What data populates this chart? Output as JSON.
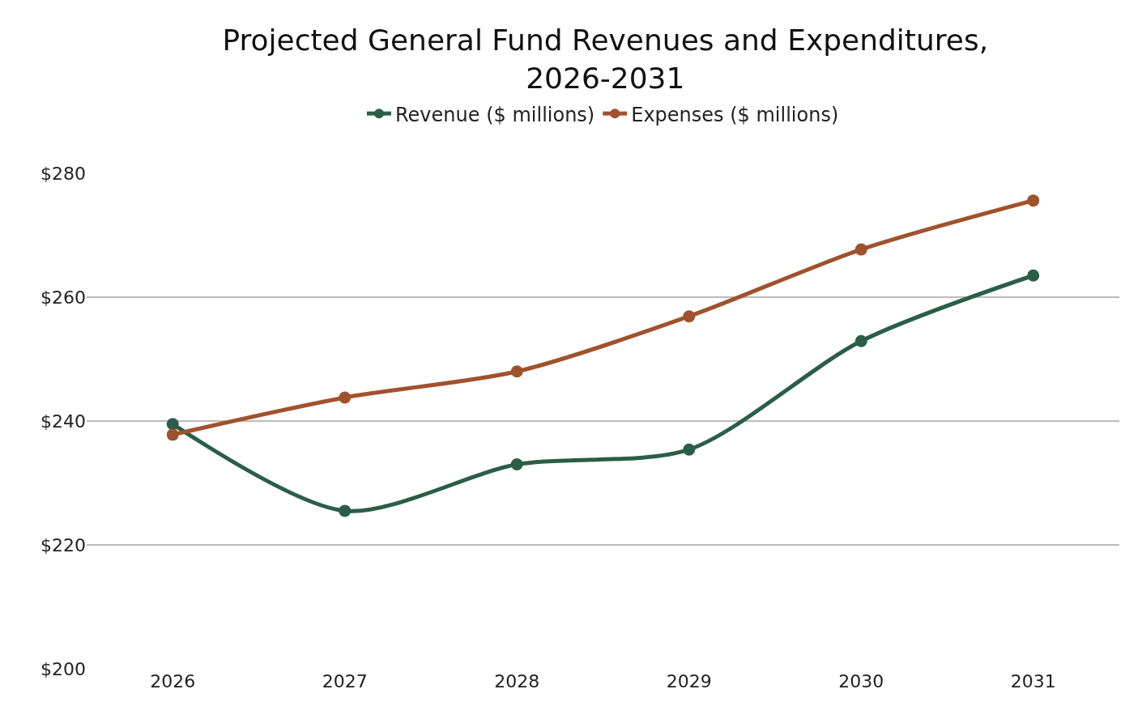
{
  "chart_data": {
    "type": "line",
    "title": "Projected General Fund Revenues and Expenditures,\n2026-2031",
    "categories": [
      "2026",
      "2027",
      "2028",
      "2029",
      "2030",
      "2031"
    ],
    "series": [
      {
        "name": "Revenue ($ millions)",
        "color": "#2a5e4a",
        "values": [
          239.5,
          225.5,
          233,
          235.4,
          252.9,
          263.5
        ]
      },
      {
        "name": "Expenses ($ millions)",
        "color": "#a0522d",
        "values": [
          237.8,
          243.8,
          248,
          256.9,
          267.7,
          275.6
        ]
      }
    ],
    "ylim": [
      200,
      280
    ],
    "yticks": [
      {
        "value": 200,
        "label": "$200"
      },
      {
        "value": 220,
        "label": "$220"
      },
      {
        "value": 240,
        "label": "$240"
      },
      {
        "value": 260,
        "label": "$260"
      },
      {
        "value": 280,
        "label": "$280"
      }
    ],
    "grid": "y",
    "legend": "top",
    "marker": "circle",
    "line_style": "solid"
  }
}
